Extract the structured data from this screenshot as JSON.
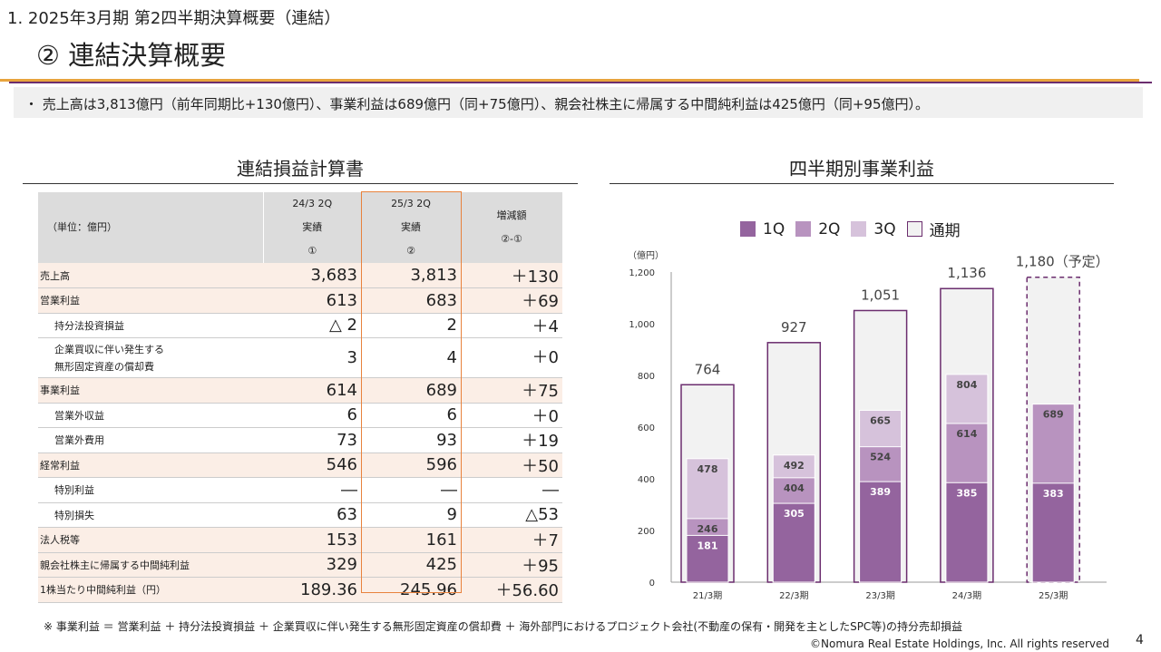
{
  "header": {
    "section": "1. 2025年3月期 第2四半期決算概要（連結）",
    "title": "② 連結決算概要"
  },
  "summary": "・ 売上高は3,813億円（前年同期比+130億円）、事業利益は689億円（同+75億円）、親会社株主に帰属する中間純利益は425億円（同+95億円）。",
  "table": {
    "title": "連結損益計算書",
    "unit": "（単位：億円）",
    "columns": [
      {
        "l1": "24/3 2Q",
        "l2": "実績",
        "l3": "①"
      },
      {
        "l1": "25/3 2Q",
        "l2": "実績",
        "l3": "②"
      },
      {
        "l1": "",
        "l2": "増減額",
        "l3": "②-①"
      }
    ],
    "rows": [
      {
        "label": "売上高",
        "v": [
          "3,683",
          "3,813",
          "＋130"
        ]
      },
      {
        "label": "営業利益",
        "v": [
          "613",
          "683",
          "＋69"
        ]
      },
      {
        "label": "持分法投資損益",
        "v": [
          "△ 2",
          "2",
          "＋4"
        ]
      },
      {
        "label": "企業買収に伴い発生する",
        "label2": "無形固定資産の償却費",
        "v": [
          "3",
          "4",
          "＋0"
        ]
      },
      {
        "label": "事業利益",
        "v": [
          "614",
          "689",
          "＋75"
        ]
      },
      {
        "label": "営業外収益",
        "v": [
          "6",
          "6",
          "＋0"
        ]
      },
      {
        "label": "営業外費用",
        "v": [
          "73",
          "93",
          "＋19"
        ]
      },
      {
        "label": "経常利益",
        "v": [
          "546",
          "596",
          "＋50"
        ]
      },
      {
        "label": "特別利益",
        "v": [
          "―",
          "―",
          "―"
        ]
      },
      {
        "label": "特別損失",
        "v": [
          "63",
          "9",
          "△53"
        ]
      },
      {
        "label": "法人税等",
        "v": [
          "153",
          "161",
          "＋7"
        ]
      },
      {
        "label": "親会社株主に帰属する中間純利益",
        "v": [
          "329",
          "425",
          "＋95"
        ]
      },
      {
        "label": "1株当たり中間純利益（円）",
        "v": [
          "189.36",
          "245.96",
          "＋56.60"
        ]
      }
    ]
  },
  "chart_data": {
    "type": "bar",
    "title": "四半期別事業利益",
    "ylabel": "（億円）",
    "ylim": [
      0,
      1200
    ],
    "yticks": [
      "0",
      "200",
      "400",
      "600",
      "800",
      "1,000",
      "1,200"
    ],
    "categories": [
      "21/3期",
      "22/3期",
      "23/3期",
      "24/3期",
      "25/3期"
    ],
    "series": [
      {
        "name": "1Q",
        "color": "#94649e",
        "values": [
          181,
          305,
          389,
          385,
          383
        ]
      },
      {
        "name": "2Q",
        "color": "#b893bf",
        "values": [
          246,
          404,
          524,
          614,
          689
        ]
      },
      {
        "name": "3Q",
        "color": "#d6c2db",
        "values": [
          478,
          492,
          665,
          804,
          null
        ]
      },
      {
        "name": "通期",
        "color": "#f2f2f2",
        "values": [
          764,
          927,
          1051,
          1136,
          1180
        ]
      }
    ],
    "annual_labels": [
      "764",
      "927",
      "1,051",
      "1,136",
      "1,180（予定）"
    ],
    "forecast_category": "25/3期",
    "legend": "top",
    "grid": false
  },
  "footer": {
    "note": "※ 事業利益 ＝ 営業利益 ＋ 持分法投資損益 ＋ 企業買収に伴い発生する無形固定資産の償却費 ＋ 海外部門におけるプロジェクト会社(不動産の保有・開発を主としたSPC等)の持分売却損益",
    "copyright": "©Nomura Real Estate Holdings, Inc. All rights reserved",
    "page": "4"
  }
}
